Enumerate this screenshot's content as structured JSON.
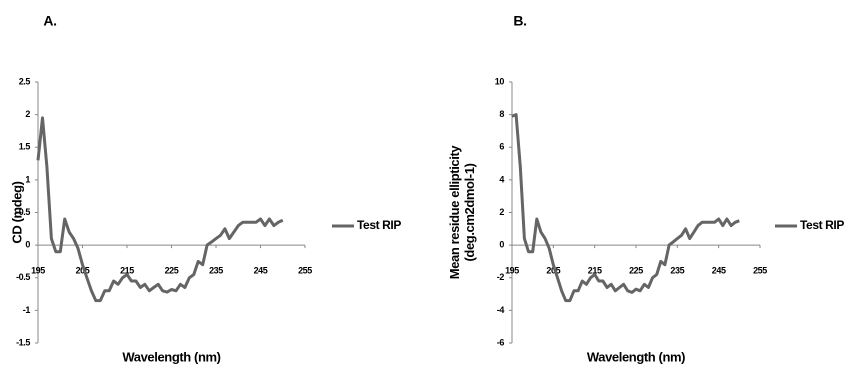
{
  "chart_data": [
    {
      "type": "line",
      "panel": "A.",
      "xlabel": "Wavelength (nm)",
      "ylabel": [
        "CD (mdeg)"
      ],
      "x": [
        195,
        196,
        197,
        198,
        199,
        200,
        201,
        202,
        203,
        204,
        205,
        206,
        207,
        208,
        209,
        210,
        211,
        212,
        213,
        214,
        215,
        216,
        217,
        218,
        219,
        220,
        221,
        222,
        223,
        224,
        225,
        226,
        227,
        228,
        229,
        230,
        231,
        232,
        233,
        234,
        235,
        236,
        237,
        238,
        239,
        240,
        241,
        242,
        243,
        244,
        245,
        246,
        247,
        248,
        249,
        250
      ],
      "series": [
        {
          "name": "Test RIP",
          "color": "#656565",
          "values": [
            1.3,
            1.95,
            1.2,
            0.1,
            -0.1,
            -0.1,
            0.4,
            0.2,
            0.1,
            -0.05,
            -0.3,
            -0.5,
            -0.7,
            -0.85,
            -0.85,
            -0.7,
            -0.7,
            -0.55,
            -0.6,
            -0.5,
            -0.45,
            -0.55,
            -0.55,
            -0.65,
            -0.6,
            -0.7,
            -0.65,
            -0.6,
            -0.7,
            -0.72,
            -0.68,
            -0.7,
            -0.6,
            -0.65,
            -0.5,
            -0.45,
            -0.25,
            -0.3,
            0,
            0.05,
            0.1,
            0.15,
            0.25,
            0.1,
            0.2,
            0.3,
            0.35,
            0.35,
            0.35,
            0.35,
            0.4,
            0.3,
            0.4,
            0.3,
            0.35,
            0.38
          ]
        }
      ],
      "xlim": [
        195,
        255
      ],
      "xticks": [
        195,
        205,
        215,
        225,
        235,
        245,
        255
      ],
      "ylim": [
        -1.5,
        2.5
      ],
      "yticks": [
        -1.5,
        -1,
        -0.5,
        0,
        0.5,
        1,
        1.5,
        2,
        2.5
      ]
    },
    {
      "type": "line",
      "panel": "B.",
      "xlabel": "Wavelength (nm)",
      "ylabel": [
        "Mean residue ellipticity",
        "(deg.cm2dmol-1)"
      ],
      "x": [
        195,
        196,
        197,
        198,
        199,
        200,
        201,
        202,
        203,
        204,
        205,
        206,
        207,
        208,
        209,
        210,
        211,
        212,
        213,
        214,
        215,
        216,
        217,
        218,
        219,
        220,
        221,
        222,
        223,
        224,
        225,
        226,
        227,
        228,
        229,
        230,
        231,
        232,
        233,
        234,
        235,
        236,
        237,
        238,
        239,
        240,
        241,
        242,
        243,
        244,
        245,
        246,
        247,
        248,
        249,
        250
      ],
      "series": [
        {
          "name": "Test RIP",
          "color": "#656565",
          "values": [
            7.9,
            8,
            4.8,
            0.4,
            -0.4,
            -0.4,
            1.6,
            0.8,
            0.4,
            -0.2,
            -1.2,
            -2,
            -2.8,
            -3.4,
            -3.4,
            -2.8,
            -2.8,
            -2.2,
            -2.4,
            -2,
            -1.8,
            -2.2,
            -2.2,
            -2.6,
            -2.4,
            -2.8,
            -2.6,
            -2.4,
            -2.8,
            -2.9,
            -2.7,
            -2.8,
            -2.4,
            -2.6,
            -2,
            -1.8,
            -1,
            -1.2,
            0,
            0.2,
            0.4,
            0.6,
            1,
            0.4,
            0.8,
            1.2,
            1.4,
            1.4,
            1.4,
            1.4,
            1.6,
            1.2,
            1.6,
            1.2,
            1.4,
            1.5
          ]
        }
      ],
      "xlim": [
        195,
        255
      ],
      "xticks": [
        195,
        205,
        215,
        225,
        235,
        245,
        255
      ],
      "ylim": [
        -6,
        10
      ],
      "yticks": [
        -6,
        -4,
        -2,
        0,
        2,
        4,
        6,
        8,
        10
      ]
    }
  ]
}
